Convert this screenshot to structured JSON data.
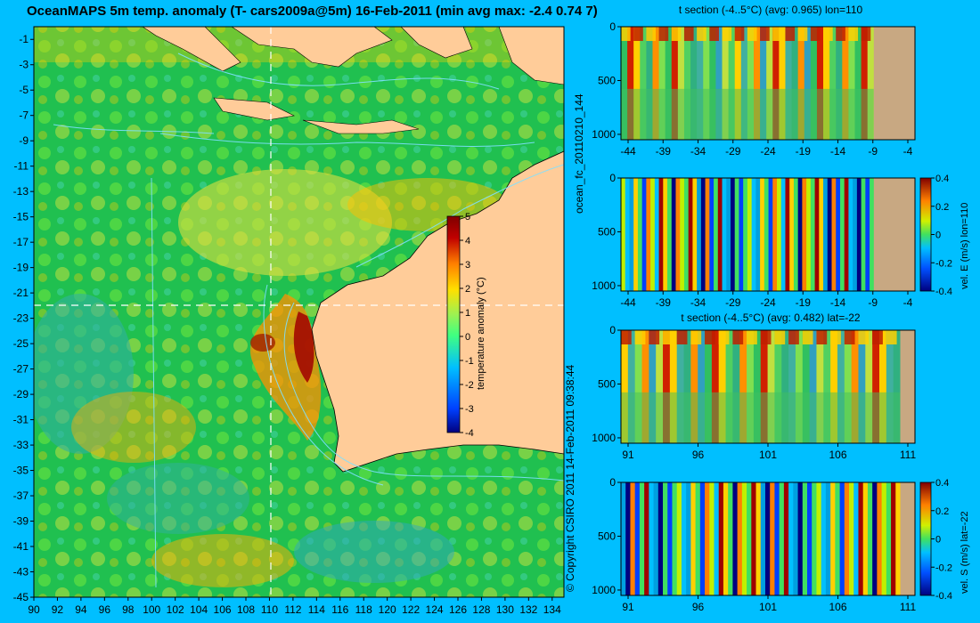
{
  "title": "OceanMAPS 5m temp. anomaly (T- cars2009a@5m) 16-Feb-2011 (min avg max: -2.4 0.74 7)",
  "colors": {
    "background": "#00bfff",
    "land_map": "#ffcc99",
    "land_section": "#c8a882",
    "contour": "#7fe0ff",
    "anomaly_scale": [
      "#00007f",
      "#0040ff",
      "#00bfff",
      "#40ff80",
      "#c0ff40",
      "#ffd000",
      "#ff6000",
      "#c00000",
      "#7f0000"
    ]
  },
  "main_map": {
    "lon_range": [
      90,
      135
    ],
    "lat_range": [
      -45,
      0
    ],
    "x_ticks": [
      "90",
      "92",
      "94",
      "96",
      "98",
      "100",
      "102",
      "104",
      "106",
      "108",
      "110",
      "112",
      "114",
      "116",
      "118",
      "120",
      "122",
      "124",
      "126",
      "128",
      "130",
      "132",
      "134"
    ],
    "y_ticks": [
      "-1",
      "-3",
      "-5",
      "-7",
      "-9",
      "-11",
      "-13",
      "-15",
      "-17",
      "-19",
      "-21",
      "-23",
      "-25",
      "-27",
      "-29",
      "-31",
      "-33",
      "-35",
      "-37",
      "-39",
      "-41",
      "-43",
      "-45"
    ],
    "section_lon": 110,
    "section_lat": -22,
    "colorbar": {
      "label": "temperature anomaly (°C)",
      "range": [
        -4,
        5
      ],
      "ticks": [
        "5",
        "4",
        "3",
        "2",
        "1",
        "0",
        "-1",
        "-2",
        "-3",
        "-4"
      ]
    }
  },
  "side_labels": {
    "forecast_id": "ocean_fc_20110210_144",
    "copyright": "© Copyright CSIRO 2011  14-Feb-2011 09:38:44"
  },
  "panels": [
    {
      "title": "t section (-4..5°C) (avg: 0.965) lon=110",
      "x_ticks": [
        "-44",
        "-39",
        "-34",
        "-29",
        "-24",
        "-19",
        "-14",
        "-9",
        "-4"
      ],
      "y_ticks": [
        "0",
        "500",
        "1000"
      ],
      "colorbar": null
    },
    {
      "title": "",
      "x_ticks": [
        "-44",
        "-39",
        "-34",
        "-29",
        "-24",
        "-19",
        "-14",
        "-9",
        "-4"
      ],
      "y_ticks": [
        "0",
        "500",
        "1000"
      ],
      "colorbar": {
        "label": "vel. E (m/s) lon=110",
        "range": [
          -0.4,
          0.4
        ],
        "ticks": [
          "0.4",
          "0.2",
          "0",
          "-0.2",
          "-0.4"
        ]
      }
    },
    {
      "title": "t section (-4..5°C) (avg: 0.482) lat=-22",
      "x_ticks": [
        "91",
        "96",
        "101",
        "106",
        "111"
      ],
      "y_ticks": [
        "0",
        "500",
        "1000"
      ],
      "colorbar": null
    },
    {
      "title": "",
      "x_ticks": [
        "91",
        "96",
        "101",
        "106",
        "111"
      ],
      "y_ticks": [
        "0",
        "500",
        "1000"
      ],
      "colorbar": {
        "label": "vel. S (m/s) lat=-22",
        "range": [
          -0.4,
          0.4
        ],
        "ticks": [
          "0.4",
          "0.2",
          "0",
          "-0.2",
          "-0.4"
        ]
      }
    }
  ]
}
